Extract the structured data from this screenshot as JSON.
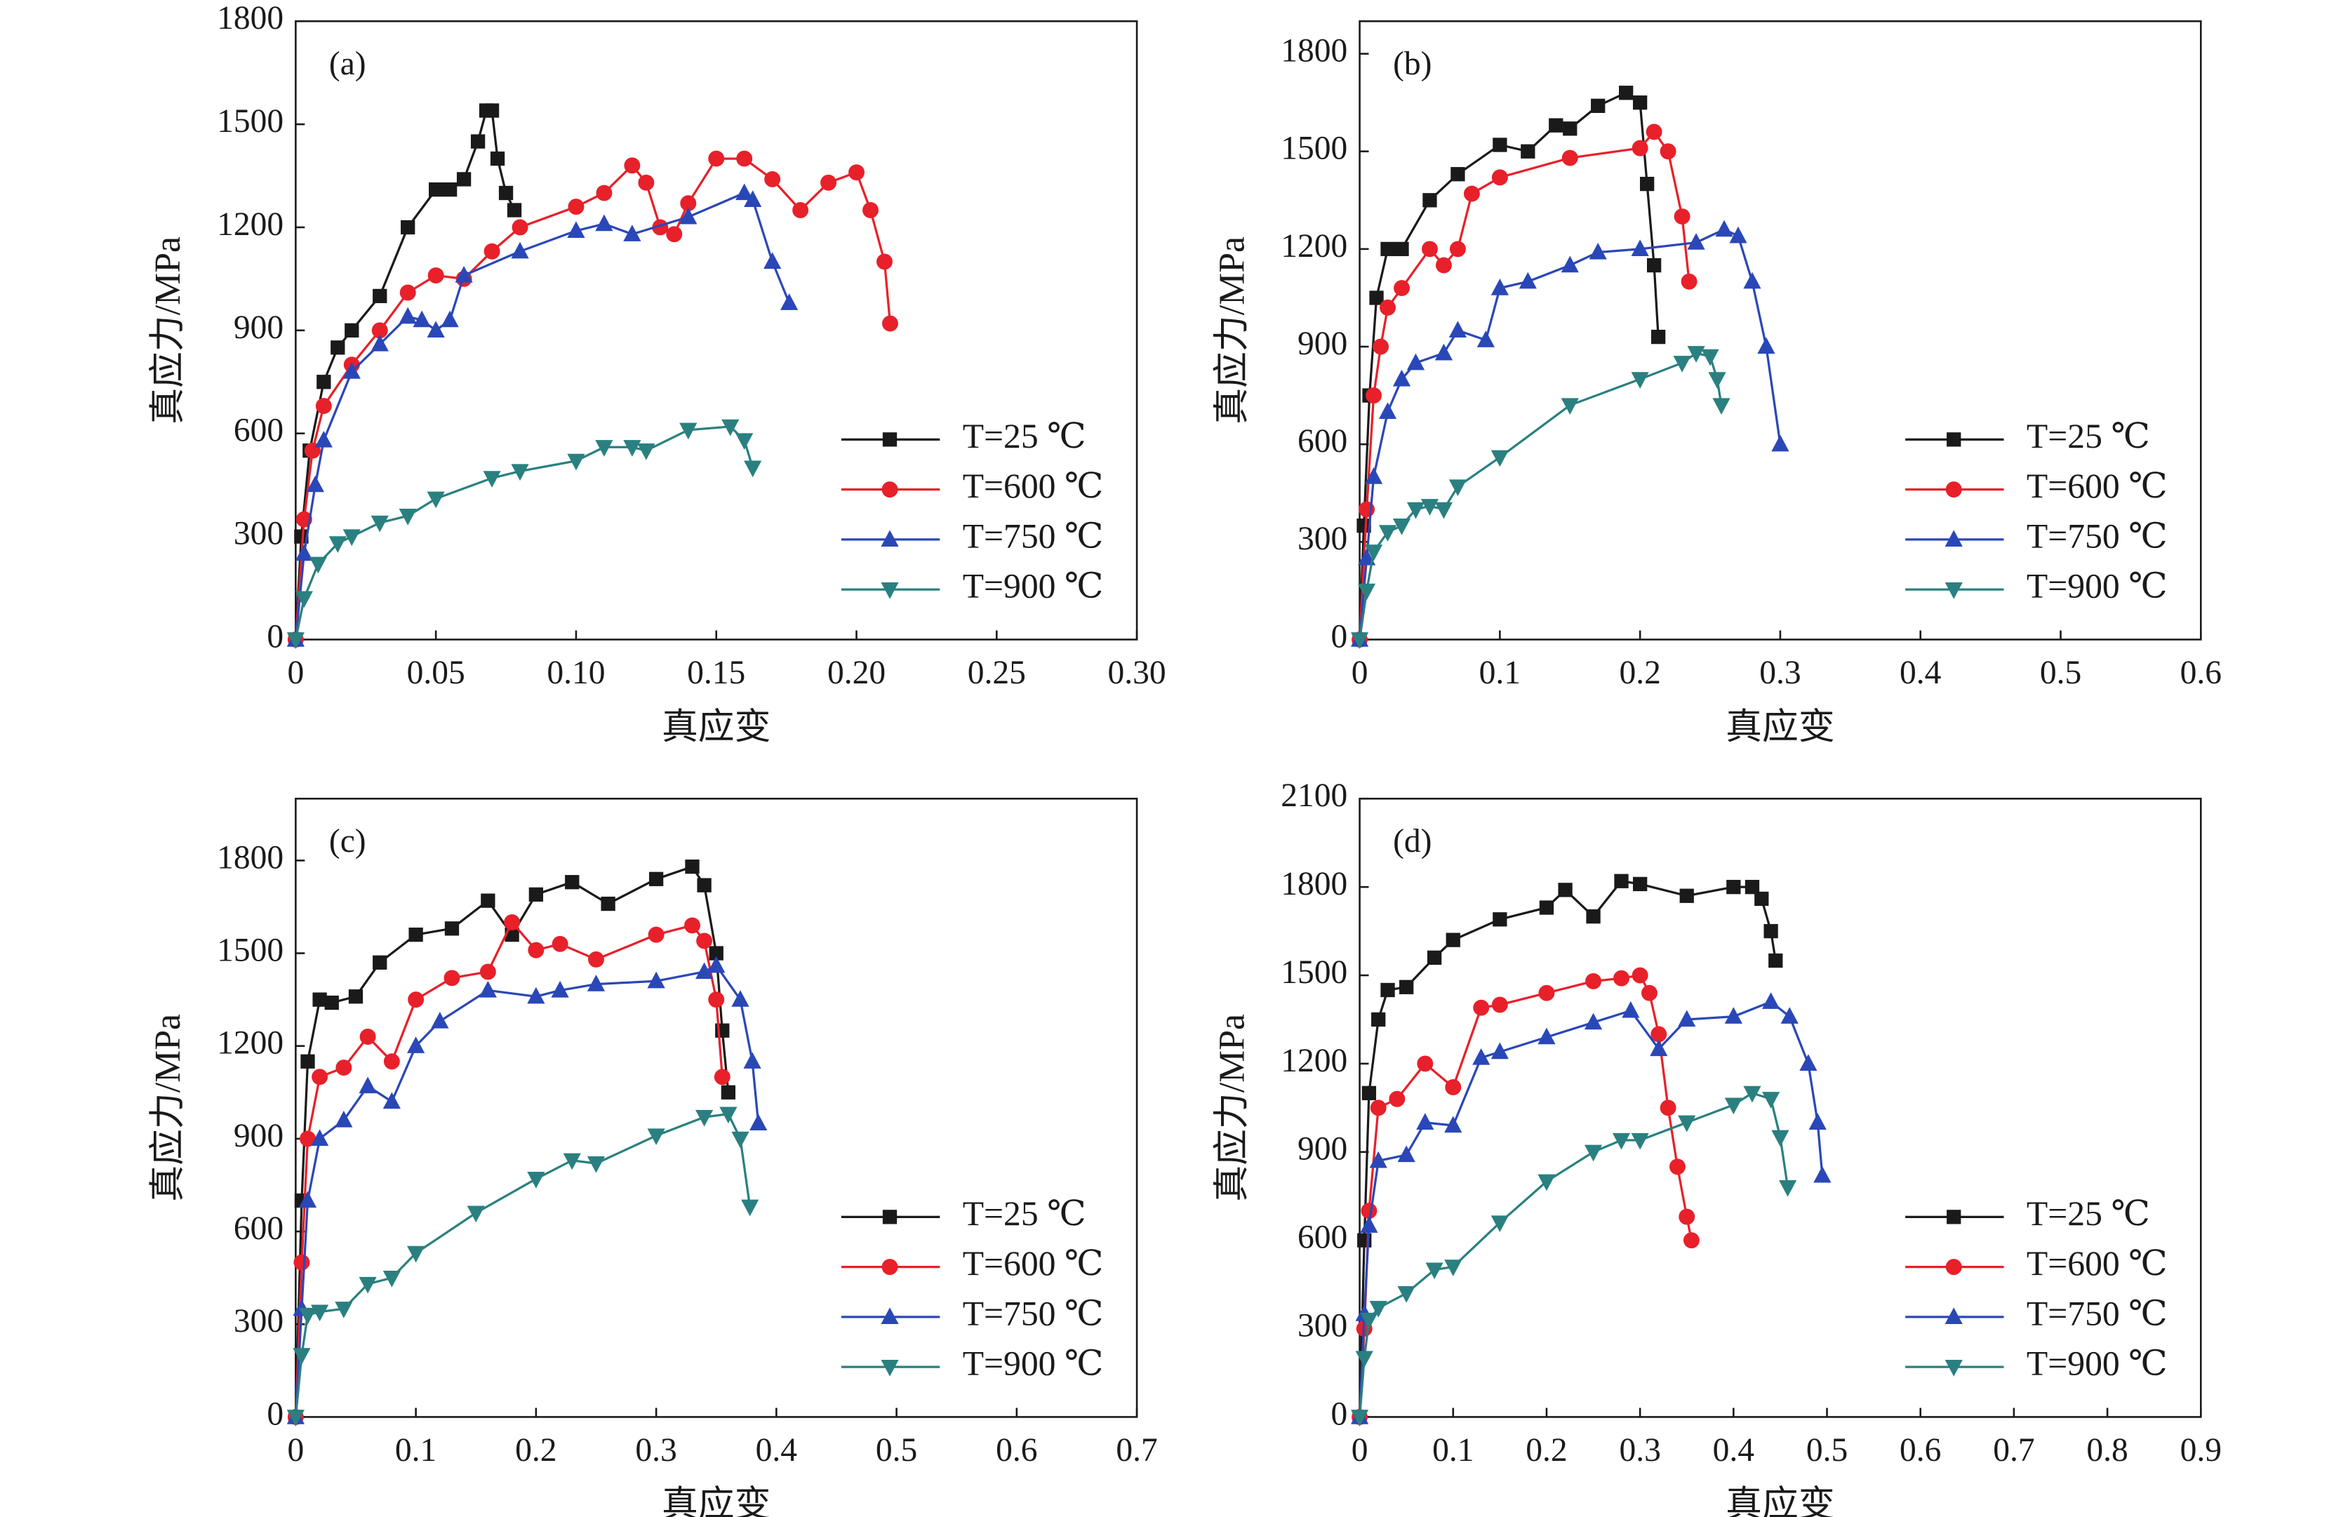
{
  "chart_data": [
    {
      "type": "line",
      "panel_label": "(a)",
      "x_label": "真应变",
      "y_label": "真应力/MPa",
      "legend": "lower right",
      "xlim": [
        0,
        0.3
      ],
      "xticks": [
        0,
        0.05,
        {
          "value": 0.1,
          "label": "0.10"
        },
        0.15,
        {
          "value": 0.2,
          "label": "0.20"
        },
        0.25,
        {
          "value": 0.3,
          "label": "0.30"
        }
      ],
      "ylim": [
        0,
        1800
      ],
      "yticks": [
        0,
        300,
        600,
        900,
        1200,
        1500,
        1800
      ],
      "series": [
        {
          "name": "T=25 ℃",
          "color": "#1a1a1a",
          "marker": "square",
          "x": [
            0,
            0.002,
            0.005,
            0.01,
            0.015,
            0.02,
            0.03,
            0.04,
            0.05,
            0.055,
            0.06,
            0.065,
            0.068,
            0.07,
            0.072,
            0.075,
            0.078
          ],
          "values": [
            0,
            300,
            550,
            750,
            850,
            900,
            1000,
            1200,
            1310,
            1310,
            1340,
            1450,
            1540,
            1540,
            1400,
            1300,
            1250
          ]
        },
        {
          "name": "T=600 ℃",
          "color": "#e8202a",
          "marker": "circle",
          "x": [
            0,
            0.003,
            0.006,
            0.01,
            0.02,
            0.03,
            0.04,
            0.05,
            0.06,
            0.07,
            0.08,
            0.1,
            0.11,
            0.12,
            0.125,
            0.13,
            0.135,
            0.14,
            0.15,
            0.16,
            0.17,
            0.18,
            0.19,
            0.2,
            0.205,
            0.21,
            0.212
          ],
          "values": [
            0,
            350,
            550,
            680,
            800,
            900,
            1010,
            1060,
            1050,
            1130,
            1200,
            1260,
            1300,
            1380,
            1330,
            1200,
            1180,
            1270,
            1400,
            1400,
            1340,
            1250,
            1330,
            1360,
            1250,
            1100,
            920
          ]
        },
        {
          "name": "T=750 ℃",
          "color": "#2a47b8",
          "marker": "triangle-up",
          "x": [
            0,
            0.003,
            0.007,
            0.01,
            0.02,
            0.03,
            0.04,
            0.045,
            0.05,
            0.055,
            0.06,
            0.08,
            0.1,
            0.11,
            0.12,
            0.14,
            0.16,
            0.163,
            0.17,
            0.176
          ],
          "values": [
            0,
            250,
            450,
            580,
            780,
            860,
            940,
            930,
            900,
            930,
            1060,
            1130,
            1190,
            1210,
            1180,
            1230,
            1300,
            1280,
            1100,
            980
          ]
        },
        {
          "name": "T=900 ℃",
          "color": "#2a8080",
          "marker": "triangle-down",
          "x": [
            0,
            0.003,
            0.008,
            0.015,
            0.02,
            0.03,
            0.04,
            0.05,
            0.07,
            0.08,
            0.1,
            0.11,
            0.12,
            0.125,
            0.14,
            0.155,
            0.16,
            0.163
          ],
          "values": [
            0,
            120,
            220,
            280,
            300,
            340,
            360,
            410,
            470,
            490,
            520,
            560,
            560,
            550,
            610,
            620,
            580,
            500
          ]
        }
      ]
    },
    {
      "type": "line",
      "panel_label": "(b)",
      "x_label": "真应变",
      "y_label": "真应力/MPa",
      "legend": "lower right",
      "xlim": [
        0,
        0.6
      ],
      "xticks": [
        0,
        0.1,
        0.2,
        0.3,
        0.4,
        0.5,
        0.6
      ],
      "ylim": [
        0,
        1900
      ],
      "yticks": [
        0,
        300,
        600,
        900,
        1200,
        1500,
        1800
      ],
      "series": [
        {
          "name": "T=25 ℃",
          "color": "#1a1a1a",
          "marker": "square",
          "x": [
            0,
            0.003,
            0.007,
            0.012,
            0.02,
            0.03,
            0.05,
            0.07,
            0.1,
            0.12,
            0.14,
            0.15,
            0.17,
            0.19,
            0.2,
            0.205,
            0.21,
            0.213
          ],
          "values": [
            0,
            350,
            750,
            1050,
            1200,
            1200,
            1350,
            1430,
            1520,
            1500,
            1580,
            1570,
            1640,
            1680,
            1650,
            1400,
            1150,
            930
          ]
        },
        {
          "name": "T=600 ℃",
          "color": "#e8202a",
          "marker": "circle",
          "x": [
            0,
            0.005,
            0.01,
            0.015,
            0.02,
            0.03,
            0.05,
            0.06,
            0.07,
            0.08,
            0.1,
            0.15,
            0.2,
            0.21,
            0.22,
            0.23,
            0.235
          ],
          "values": [
            0,
            400,
            750,
            900,
            1020,
            1080,
            1200,
            1150,
            1200,
            1370,
            1420,
            1480,
            1510,
            1560,
            1500,
            1300,
            1100
          ]
        },
        {
          "name": "T=750 ℃",
          "color": "#2a47b8",
          "marker": "triangle-up",
          "x": [
            0,
            0.005,
            0.01,
            0.02,
            0.03,
            0.04,
            0.06,
            0.07,
            0.09,
            0.1,
            0.12,
            0.15,
            0.17,
            0.2,
            0.24,
            0.26,
            0.27,
            0.28,
            0.29,
            0.3
          ],
          "values": [
            0,
            250,
            500,
            700,
            800,
            850,
            880,
            950,
            920,
            1080,
            1100,
            1150,
            1190,
            1200,
            1220,
            1260,
            1240,
            1100,
            900,
            600
          ]
        },
        {
          "name": "T=900 ℃",
          "color": "#2a8080",
          "marker": "triangle-down",
          "x": [
            0,
            0.005,
            0.01,
            0.02,
            0.03,
            0.04,
            0.05,
            0.06,
            0.07,
            0.1,
            0.15,
            0.2,
            0.23,
            0.24,
            0.25,
            0.255,
            0.258
          ],
          "values": [
            0,
            150,
            270,
            330,
            350,
            400,
            410,
            400,
            470,
            560,
            720,
            800,
            850,
            880,
            870,
            800,
            720
          ]
        }
      ]
    },
    {
      "type": "line",
      "panel_label": "(c)",
      "x_label": "真应变",
      "y_label": "真应力/MPa",
      "legend": "lower right",
      "xlim": [
        0,
        0.7
      ],
      "xticks": [
        0,
        0.1,
        0.2,
        0.3,
        0.4,
        0.5,
        0.6,
        0.7
      ],
      "ylim": [
        0,
        2000
      ],
      "yticks": [
        0,
        300,
        600,
        900,
        1200,
        1500,
        1800
      ],
      "series": [
        {
          "name": "T=25 ℃",
          "color": "#1a1a1a",
          "marker": "square",
          "x": [
            0,
            0.005,
            0.01,
            0.02,
            0.03,
            0.05,
            0.07,
            0.1,
            0.13,
            0.16,
            0.18,
            0.2,
            0.23,
            0.26,
            0.3,
            0.33,
            0.34,
            0.35,
            0.355,
            0.36
          ],
          "values": [
            0,
            700,
            1150,
            1350,
            1340,
            1360,
            1470,
            1560,
            1580,
            1670,
            1560,
            1690,
            1730,
            1660,
            1740,
            1780,
            1720,
            1500,
            1250,
            1050
          ]
        },
        {
          "name": "T=600 ℃",
          "color": "#e8202a",
          "marker": "circle",
          "x": [
            0,
            0.005,
            0.01,
            0.02,
            0.04,
            0.06,
            0.08,
            0.1,
            0.13,
            0.16,
            0.18,
            0.2,
            0.22,
            0.25,
            0.3,
            0.33,
            0.34,
            0.35,
            0.355
          ],
          "values": [
            0,
            500,
            900,
            1100,
            1130,
            1230,
            1150,
            1350,
            1420,
            1440,
            1600,
            1510,
            1530,
            1480,
            1560,
            1590,
            1540,
            1350,
            1100
          ]
        },
        {
          "name": "T=750 ℃",
          "color": "#2a47b8",
          "marker": "triangle-up",
          "x": [
            0,
            0.005,
            0.01,
            0.02,
            0.04,
            0.06,
            0.08,
            0.1,
            0.12,
            0.16,
            0.2,
            0.22,
            0.25,
            0.3,
            0.34,
            0.35,
            0.37,
            0.38,
            0.385
          ],
          "values": [
            0,
            350,
            700,
            900,
            960,
            1070,
            1020,
            1200,
            1280,
            1380,
            1360,
            1380,
            1400,
            1410,
            1440,
            1460,
            1350,
            1150,
            950
          ]
        },
        {
          "name": "T=900 ℃",
          "color": "#2a8080",
          "marker": "triangle-down",
          "x": [
            0,
            0.005,
            0.01,
            0.02,
            0.04,
            0.06,
            0.08,
            0.1,
            0.15,
            0.2,
            0.23,
            0.25,
            0.3,
            0.34,
            0.36,
            0.37,
            0.378
          ],
          "values": [
            0,
            200,
            330,
            340,
            350,
            430,
            450,
            530,
            660,
            770,
            830,
            820,
            910,
            970,
            980,
            900,
            680
          ]
        }
      ]
    },
    {
      "type": "line",
      "panel_label": "(d)",
      "x_label": "真应变",
      "y_label": "真应力/MPa",
      "legend": "lower right",
      "xlim": [
        0,
        0.9
      ],
      "xticks": [
        0,
        0.1,
        0.2,
        0.3,
        0.4,
        0.5,
        0.6,
        0.7,
        0.8,
        0.9
      ],
      "ylim": [
        0,
        2100
      ],
      "yticks": [
        0,
        300,
        600,
        900,
        1200,
        1500,
        1800,
        2100
      ],
      "series": [
        {
          "name": "T=25 ℃",
          "color": "#1a1a1a",
          "marker": "square",
          "x": [
            0,
            0.005,
            0.01,
            0.02,
            0.03,
            0.05,
            0.08,
            0.1,
            0.15,
            0.2,
            0.22,
            0.25,
            0.28,
            0.3,
            0.35,
            0.4,
            0.42,
            0.43,
            0.44,
            0.445
          ],
          "values": [
            0,
            600,
            1100,
            1350,
            1450,
            1460,
            1560,
            1620,
            1690,
            1730,
            1790,
            1700,
            1820,
            1810,
            1770,
            1800,
            1800,
            1760,
            1650,
            1550
          ]
        },
        {
          "name": "T=600 ℃",
          "color": "#e8202a",
          "marker": "circle",
          "x": [
            0,
            0.005,
            0.01,
            0.02,
            0.04,
            0.07,
            0.1,
            0.13,
            0.15,
            0.2,
            0.25,
            0.28,
            0.3,
            0.31,
            0.32,
            0.33,
            0.34,
            0.35,
            0.355
          ],
          "values": [
            0,
            300,
            700,
            1050,
            1080,
            1200,
            1120,
            1390,
            1400,
            1440,
            1480,
            1490,
            1500,
            1440,
            1300,
            1050,
            850,
            680,
            600
          ]
        },
        {
          "name": "T=750 ℃",
          "color": "#2a47b8",
          "marker": "triangle-up",
          "x": [
            0,
            0.005,
            0.01,
            0.02,
            0.05,
            0.07,
            0.1,
            0.13,
            0.15,
            0.2,
            0.25,
            0.29,
            0.32,
            0.35,
            0.4,
            0.44,
            0.46,
            0.48,
            0.49,
            0.495
          ],
          "values": [
            0,
            350,
            650,
            870,
            890,
            1000,
            990,
            1220,
            1240,
            1290,
            1340,
            1380,
            1250,
            1350,
            1360,
            1410,
            1360,
            1200,
            1000,
            820
          ]
        },
        {
          "name": "T=900 ℃",
          "color": "#2a8080",
          "marker": "triangle-down",
          "x": [
            0,
            0.005,
            0.01,
            0.02,
            0.05,
            0.08,
            0.1,
            0.15,
            0.2,
            0.25,
            0.28,
            0.3,
            0.35,
            0.4,
            0.42,
            0.44,
            0.45,
            0.458
          ],
          "values": [
            0,
            200,
            330,
            370,
            420,
            500,
            510,
            660,
            800,
            900,
            940,
            940,
            1000,
            1060,
            1100,
            1080,
            950,
            780
          ]
        }
      ]
    }
  ]
}
